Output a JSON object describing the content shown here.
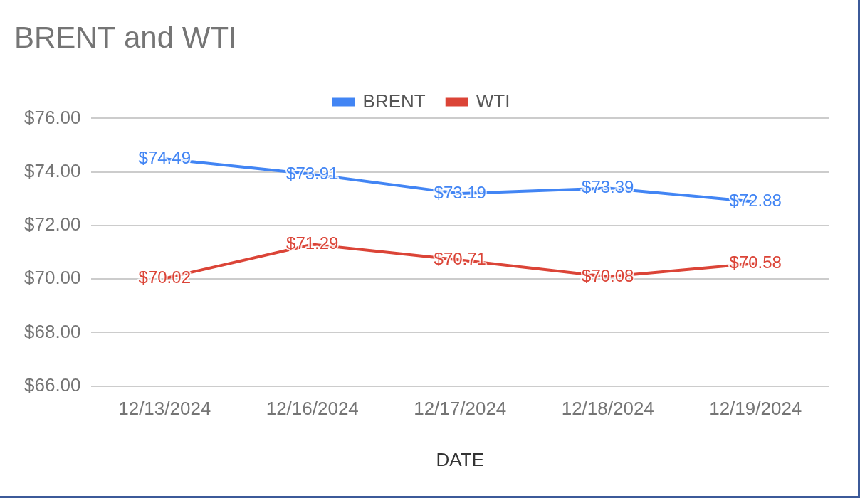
{
  "chart_data": {
    "type": "line",
    "title": "BRENT and WTI",
    "x_label": "DATE",
    "categories": [
      "12/13/2024",
      "12/16/2024",
      "12/17/2024",
      "12/18/2024",
      "12/19/2024"
    ],
    "series": [
      {
        "name": "BRENT",
        "color": "#4285f4",
        "values": [
          74.49,
          73.91,
          73.19,
          73.39,
          72.88
        ],
        "value_labels": [
          "$74.49",
          "$73.91",
          "$73.19",
          "$73.39",
          "$72.88"
        ]
      },
      {
        "name": "WTI",
        "color": "#db4437",
        "values": [
          70.02,
          71.29,
          70.71,
          70.08,
          70.58
        ],
        "value_labels": [
          "$70.02",
          "$71.29",
          "$70.71",
          "$70.08",
          "$70.58"
        ]
      }
    ],
    "ylim": [
      66,
      76
    ],
    "yticks": [
      {
        "value": 66,
        "label": "$66.00"
      },
      {
        "value": 68,
        "label": "$68.00"
      },
      {
        "value": 70,
        "label": "$70.00"
      },
      {
        "value": 72,
        "label": "$72.00"
      },
      {
        "value": 74,
        "label": "$74.00"
      },
      {
        "value": 76,
        "label": "$76.00"
      }
    ],
    "grid": true,
    "legend": "top",
    "data_labels": true,
    "marker": "none"
  }
}
